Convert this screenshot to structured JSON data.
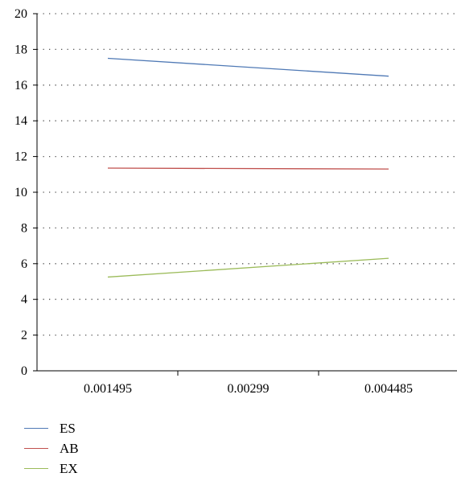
{
  "chart_data": {
    "type": "line",
    "categories": [
      "0.001495",
      "0.00299",
      "0.004485"
    ],
    "x": [
      0.001495,
      0.00299,
      0.004485
    ],
    "ylim": [
      0,
      20
    ],
    "yticks": [
      "0",
      "2",
      "4",
      "6",
      "8",
      "10",
      "12",
      "14",
      "16",
      "18",
      "20"
    ],
    "grid": "horizontal dotted",
    "legend_position": "bottom-left",
    "series": [
      {
        "name": "ES",
        "color": "#4f79b5",
        "values": [
          17.5,
          null,
          16.5
        ]
      },
      {
        "name": "AB",
        "color": "#c0504d",
        "values": [
          11.35,
          null,
          11.3
        ]
      },
      {
        "name": "EX",
        "color": "#9bbb59",
        "values": [
          5.25,
          null,
          6.3
        ]
      }
    ]
  }
}
